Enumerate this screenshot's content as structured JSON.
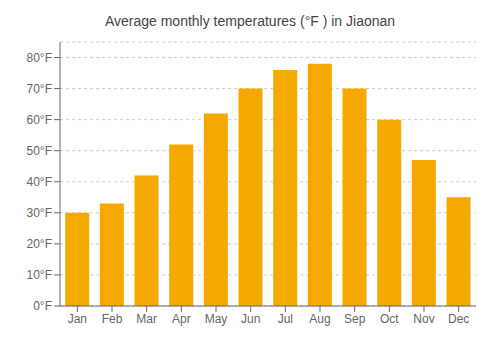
{
  "chart_data": {
    "type": "bar",
    "title": "Average monthly temperatures (°F ) in Jiaonan",
    "categories": [
      "Jan",
      "Feb",
      "Mar",
      "Apr",
      "May",
      "Jun",
      "Jul",
      "Aug",
      "Sep",
      "Oct",
      "Nov",
      "Dec"
    ],
    "values": [
      30,
      33,
      42,
      52,
      62,
      70,
      76,
      78,
      70,
      60,
      47,
      35
    ],
    "color": "#F5A800",
    "ylim": [
      0,
      85
    ],
    "yticks": [
      {
        "value": 0,
        "label": "0°F"
      },
      {
        "value": 10,
        "label": "10°F"
      },
      {
        "value": 20,
        "label": "20°F"
      },
      {
        "value": 30,
        "label": "30°F"
      },
      {
        "value": 40,
        "label": "40°F"
      },
      {
        "value": 50,
        "label": "50°F"
      },
      {
        "value": 60,
        "label": "60°F"
      },
      {
        "value": 70,
        "label": "70°F"
      },
      {
        "value": 80,
        "label": "80°F"
      }
    ],
    "grid": true
  }
}
